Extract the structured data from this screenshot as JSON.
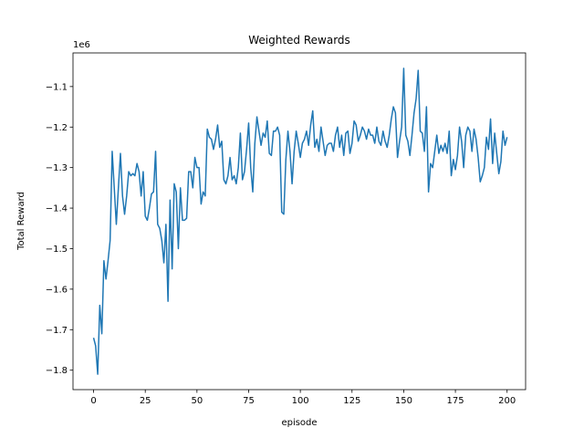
{
  "chart_data": {
    "type": "line",
    "title": "Weighted Rewards",
    "xlabel": "episode",
    "ylabel": "Total Reward",
    "y_offset_label": "1e6",
    "x": [
      0,
      1,
      2,
      3,
      4,
      5,
      6,
      7,
      8,
      9,
      10,
      11,
      12,
      13,
      14,
      15,
      16,
      17,
      18,
      19,
      20,
      21,
      22,
      23,
      24,
      25,
      26,
      27,
      28,
      29,
      30,
      31,
      32,
      33,
      34,
      35,
      36,
      37,
      38,
      39,
      40,
      41,
      42,
      43,
      44,
      45,
      46,
      47,
      48,
      49,
      50,
      51,
      52,
      53,
      54,
      55,
      56,
      57,
      58,
      59,
      60,
      61,
      62,
      63,
      64,
      65,
      66,
      67,
      68,
      69,
      70,
      71,
      72,
      73,
      74,
      75,
      76,
      77,
      78,
      79,
      80,
      81,
      82,
      83,
      84,
      85,
      86,
      87,
      88,
      89,
      90,
      91,
      92,
      93,
      94,
      95,
      96,
      97,
      98,
      99,
      100,
      101,
      102,
      103,
      104,
      105,
      106,
      107,
      108,
      109,
      110,
      111,
      112,
      113,
      114,
      115,
      116,
      117,
      118,
      119,
      120,
      121,
      122,
      123,
      124,
      125,
      126,
      127,
      128,
      129,
      130,
      131,
      132,
      133,
      134,
      135,
      136,
      137,
      138,
      139,
      140,
      141,
      142,
      143,
      144,
      145,
      146,
      147,
      148,
      149,
      150,
      151,
      152,
      153,
      154,
      155,
      156,
      157,
      158,
      159,
      160,
      161,
      162,
      163,
      164,
      165,
      166,
      167,
      168,
      169,
      170,
      171,
      172,
      173,
      174,
      175,
      176,
      177,
      178,
      179,
      180,
      181,
      182,
      183,
      184,
      185,
      186,
      187,
      188,
      189,
      190,
      191,
      192,
      193,
      194,
      195,
      196,
      197,
      198,
      199,
      200
    ],
    "series": [
      {
        "name": "Total Reward",
        "color": "#1f77b4",
        "values": [
          -1.72,
          -1.74,
          -1.81,
          -1.64,
          -1.71,
          -1.53,
          -1.575,
          -1.53,
          -1.48,
          -1.26,
          -1.35,
          -1.44,
          -1.35,
          -1.265,
          -1.37,
          -1.415,
          -1.37,
          -1.31,
          -1.32,
          -1.315,
          -1.32,
          -1.29,
          -1.31,
          -1.37,
          -1.31,
          -1.42,
          -1.43,
          -1.4,
          -1.365,
          -1.36,
          -1.26,
          -1.44,
          -1.45,
          -1.48,
          -1.535,
          -1.44,
          -1.63,
          -1.38,
          -1.55,
          -1.34,
          -1.36,
          -1.5,
          -1.35,
          -1.43,
          -1.43,
          -1.425,
          -1.31,
          -1.31,
          -1.35,
          -1.275,
          -1.3,
          -1.3,
          -1.39,
          -1.36,
          -1.37,
          -1.205,
          -1.225,
          -1.23,
          -1.255,
          -1.23,
          -1.195,
          -1.25,
          -1.235,
          -1.33,
          -1.34,
          -1.32,
          -1.275,
          -1.33,
          -1.32,
          -1.34,
          -1.3,
          -1.215,
          -1.33,
          -1.31,
          -1.255,
          -1.19,
          -1.3,
          -1.36,
          -1.24,
          -1.175,
          -1.21,
          -1.245,
          -1.215,
          -1.225,
          -1.185,
          -1.265,
          -1.27,
          -1.21,
          -1.21,
          -1.2,
          -1.22,
          -1.41,
          -1.415,
          -1.28,
          -1.21,
          -1.26,
          -1.34,
          -1.26,
          -1.21,
          -1.24,
          -1.275,
          -1.24,
          -1.23,
          -1.21,
          -1.245,
          -1.195,
          -1.16,
          -1.25,
          -1.23,
          -1.26,
          -1.2,
          -1.235,
          -1.27,
          -1.245,
          -1.24,
          -1.24,
          -1.26,
          -1.22,
          -1.2,
          -1.25,
          -1.22,
          -1.27,
          -1.215,
          -1.21,
          -1.265,
          -1.24,
          -1.185,
          -1.195,
          -1.235,
          -1.22,
          -1.2,
          -1.21,
          -1.23,
          -1.205,
          -1.22,
          -1.22,
          -1.24,
          -1.2,
          -1.235,
          -1.245,
          -1.21,
          -1.235,
          -1.25,
          -1.22,
          -1.18,
          -1.15,
          -1.165,
          -1.275,
          -1.235,
          -1.2,
          -1.055,
          -1.22,
          -1.235,
          -1.27,
          -1.22,
          -1.165,
          -1.13,
          -1.06,
          -1.21,
          -1.215,
          -1.26,
          -1.15,
          -1.36,
          -1.29,
          -1.3,
          -1.26,
          -1.22,
          -1.265,
          -1.245,
          -1.26,
          -1.24,
          -1.265,
          -1.21,
          -1.32,
          -1.28,
          -1.305,
          -1.27,
          -1.2,
          -1.235,
          -1.3,
          -1.22,
          -1.2,
          -1.21,
          -1.26,
          -1.205,
          -1.23,
          -1.275,
          -1.335,
          -1.32,
          -1.3,
          -1.225,
          -1.255,
          -1.18,
          -1.29,
          -1.215,
          -1.265,
          -1.315,
          -1.285,
          -1.21,
          -1.245,
          -1.225
        ]
      }
    ],
    "xlim": [
      -9.95,
      208.95
    ],
    "xticks": [
      0,
      25,
      50,
      75,
      100,
      125,
      150,
      175,
      200
    ],
    "ylim": [
      -1.848,
      -1.017
    ],
    "yticks": [
      {
        "value": -1.8,
        "label": "−1.8"
      },
      {
        "value": -1.7,
        "label": "−1.7"
      },
      {
        "value": -1.6,
        "label": "−1.6"
      },
      {
        "value": -1.5,
        "label": "−1.5"
      },
      {
        "value": -1.4,
        "label": "−1.4"
      },
      {
        "value": -1.3,
        "label": "−1.3"
      },
      {
        "value": -1.2,
        "label": "−1.2"
      },
      {
        "value": -1.1,
        "label": "−1.1"
      }
    ],
    "grid": false
  }
}
